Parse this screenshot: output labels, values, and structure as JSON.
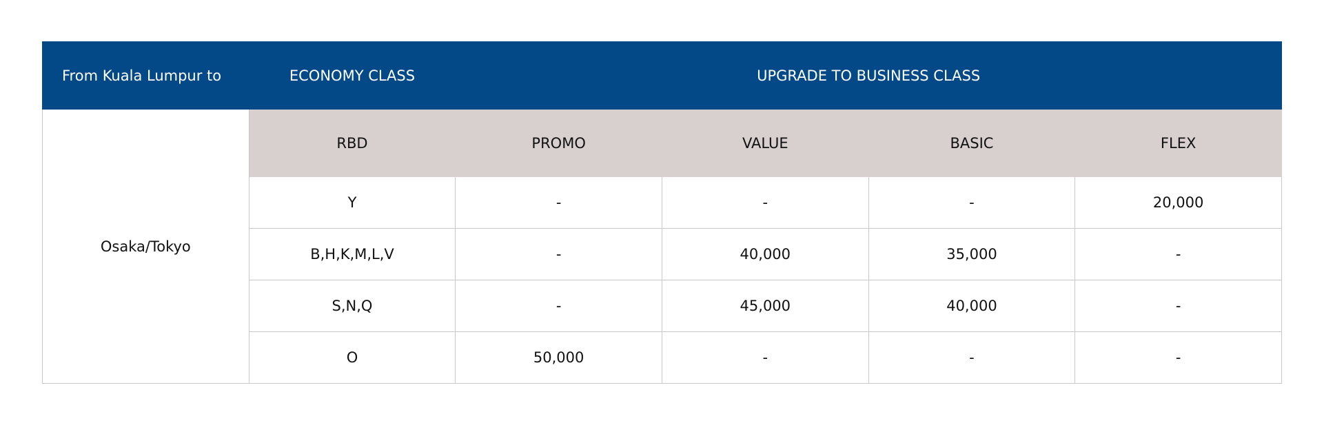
{
  "header": {
    "origin": "From Kuala Lumpur to",
    "economy": "ECONOMY CLASS",
    "upgrade": "UPGRADE TO BUSINESS CLASS"
  },
  "table": {
    "destination": "Osaka/Tokyo",
    "columns": [
      "RBD",
      "PROMO",
      "VALUE",
      "BASIC",
      "FLEX"
    ],
    "rows": [
      [
        "Y",
        "-",
        "-",
        "-",
        "20,000"
      ],
      [
        "B,H,K,M,L,V",
        "-",
        "40,000",
        "35,000",
        "-"
      ],
      [
        "S,N,Q",
        "-",
        "45,000",
        "40,000",
        "-"
      ],
      [
        "O",
        "50,000",
        "-",
        "-",
        "-"
      ]
    ]
  }
}
